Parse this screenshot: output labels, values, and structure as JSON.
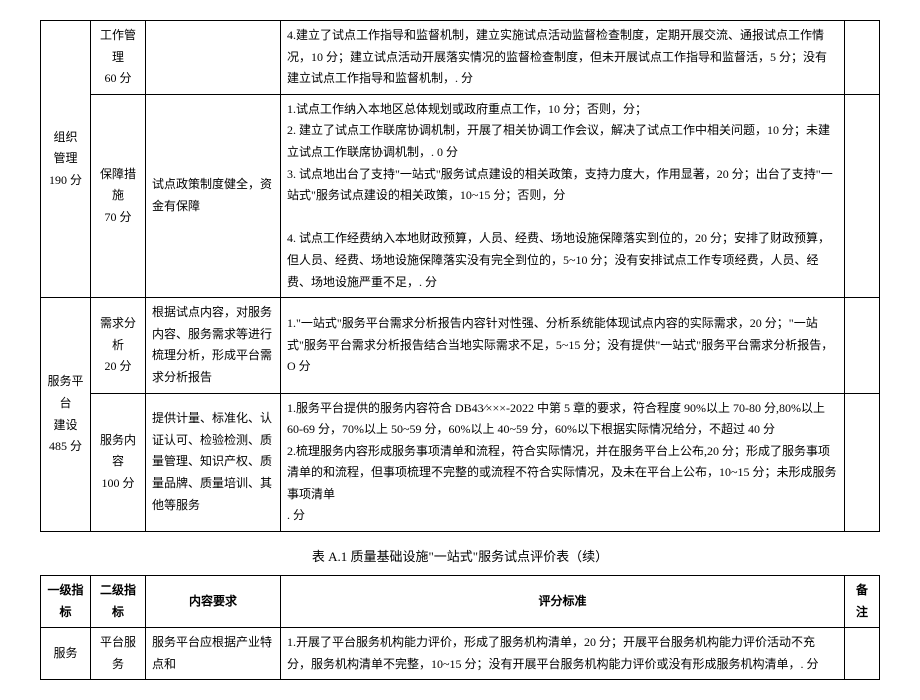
{
  "table1": {
    "rows": [
      {
        "l1": "组织\n管理\n190 分",
        "l1_rowspan": 2,
        "show_l1": true,
        "l2": "工作管理\n60 分",
        "l3": "",
        "criteria": "4.建立了试点工作指导和监督机制，建立实施试点活动监督检查制度，定期开展交流、通报试点工作情况，10 分；建立试点活动开展落实情况的监督检查制度，但未开展试点工作指导和监督活，5 分；没有建立试点工作指导和监督机制，. 分",
        "remark": ""
      },
      {
        "show_l1": false,
        "l2": "保障措施\n70 分",
        "l3": "试点政策制度健全，资金有保障",
        "criteria": "1.试点工作纳入本地区总体规划或政府重点工作，10 分；否则，分；\n2. 建立了试点工作联席协调机制，开展了相关协调工作会议，解决了试点工作中相关问题，10 分；未建立试点工作联席协调机制，. 0 分\n3. 试点地出台了支持\"一站式\"服务试点建设的相关政策，支持力度大，作用显著，20 分；出台了支持\"一站式\"服务试点建设的相关政策，10~15 分；否则，分\n\n4. 试点工作经费纳入本地财政预算，人员、经费、场地设施保障落实到位的，20 分；安排了财政预算，但人员、经费、场地设施保障落实没有完全到位的，5~10 分；没有安排试点工作专项经费，人员、经费、场地设施严重不足，. 分",
        "remark": ""
      },
      {
        "l1": "服务平台\n建设\n485 分",
        "l1_rowspan": 2,
        "show_l1": true,
        "l2": "需求分析\n20 分",
        "l3": "根据试点内容，对服务内容、服务需求等进行梳理分析，形成平台需求分析报告",
        "criteria": "1.\"一站式\"服务平台需求分析报告内容针对性强、分析系统能体现试点内容的实际需求，20 分；\"一站式\"服务平台需求分析报告结合当地实际需求不足，5~15 分；没有提供\"一站式\"服务平台需求分析报告，O 分",
        "remark": ""
      },
      {
        "show_l1": false,
        "l2": "服务内容\n100 分",
        "l3": "提供计量、标准化、认证认可、检验检测、质量管理、知识产权、质量品牌、质量培训、其他等服务",
        "criteria": "1.服务平台提供的服务内容符合 DB43∕×××-2022 中第 5 章的要求，符合程度 90%以上 70-80 分,80%以上 60-69 分，70%以上 50~59 分，60%以上 40~59 分，60%以下根据实际情况给分，不超过 40 分\n2.梳理服务内容形成服务事项清单和流程，符合实际情况，并在服务平台上公布,20 分；形成了服务事项清单的和流程，但事项梳理不完整的或流程不符合实际情况，及未在平台上公布，10~15 分；未形成服务事项清单\n. 分",
        "remark": ""
      }
    ]
  },
  "caption": "表 A.1 质量基础设施\"一站式\"服务试点评价表（续）",
  "table2": {
    "headers": [
      "一级指标",
      "二级指标",
      "内容要求",
      "评分标准",
      "备注"
    ],
    "rows": [
      {
        "l1": "服务",
        "l2": "平台服务",
        "l3": "服务平台应根据产业特点和",
        "criteria": "1.开展了平台服务机构能力评价，形成了服务机构清单，20 分；开展平台服务机构能力评价活动不充分，服务机构清单不完整，10~15 分；没有开展平台服务机构能力评价或没有形成服务机构清单，. 分",
        "remark": ""
      }
    ]
  }
}
